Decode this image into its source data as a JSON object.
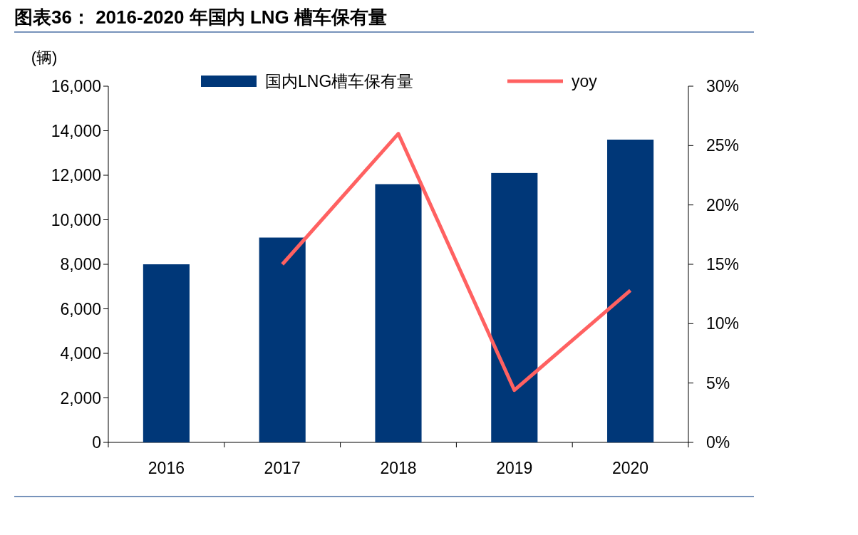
{
  "chart_data": {
    "type": "bar",
    "title": "图表36：  2016-2020 年国内 LNG 槽车保有量",
    "ylabel": "(辆)",
    "categories": [
      "2016",
      "2017",
      "2018",
      "2019",
      "2020"
    ],
    "series": [
      {
        "name": "国内LNG槽车保有量",
        "color": "#003778",
        "values": [
          8000,
          9200,
          11600,
          12100,
          13600
        ]
      },
      {
        "name": "yoy",
        "type": "line",
        "axis": "y2",
        "color": "#ff6161",
        "values": [
          null,
          15.0,
          26.0,
          4.4,
          12.8
        ]
      }
    ],
    "ylim": [
      0,
      16000
    ],
    "yticks": [
      {
        "value": 0,
        "label": "0"
      },
      {
        "value": 2000,
        "label": "2,000"
      },
      {
        "value": 4000,
        "label": "4,000"
      },
      {
        "value": 6000,
        "label": "6,000"
      },
      {
        "value": 8000,
        "label": "8,000"
      },
      {
        "value": 10000,
        "label": "10,000"
      },
      {
        "value": 12000,
        "label": "12,000"
      },
      {
        "value": 14000,
        "label": "14,000"
      },
      {
        "value": 16000,
        "label": "16,000"
      }
    ],
    "y2lim": [
      0,
      30
    ],
    "y2ticks": [
      {
        "value": 0,
        "label": "0%"
      },
      {
        "value": 5,
        "label": "5%"
      },
      {
        "value": 10,
        "label": "10%"
      },
      {
        "value": 15,
        "label": "15%"
      },
      {
        "value": 20,
        "label": "20%"
      },
      {
        "value": 25,
        "label": "25%"
      },
      {
        "value": 30,
        "label": "30%"
      }
    ],
    "legend": "top"
  }
}
